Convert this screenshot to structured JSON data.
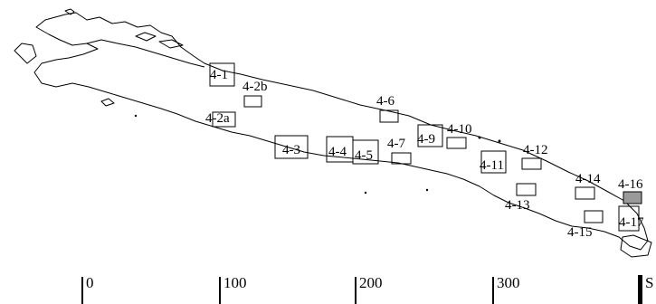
{
  "map": {
    "sheets": [
      {
        "id": "4-1",
        "label": "4-1",
        "shaded": false
      },
      {
        "id": "4-2a",
        "label": "4-2a",
        "shaded": false
      },
      {
        "id": "4-2b",
        "label": "4-2b",
        "shaded": false
      },
      {
        "id": "4-3",
        "label": "4-3",
        "shaded": false
      },
      {
        "id": "4-4",
        "label": "4-4",
        "shaded": false
      },
      {
        "id": "4-5",
        "label": "4-5",
        "shaded": false
      },
      {
        "id": "4-6",
        "label": "4-6",
        "shaded": false
      },
      {
        "id": "4-7",
        "label": "4-7",
        "shaded": false
      },
      {
        "id": "4-9",
        "label": "4-9",
        "shaded": false
      },
      {
        "id": "4-10",
        "label": "4-10",
        "shaded": false
      },
      {
        "id": "4-11",
        "label": "4-11",
        "shaded": false
      },
      {
        "id": "4-12",
        "label": "4-12",
        "shaded": false
      },
      {
        "id": "4-13",
        "label": "4-13",
        "shaded": false
      },
      {
        "id": "4-14",
        "label": "4-14",
        "shaded": false
      },
      {
        "id": "4-15",
        "label": "4-15",
        "shaded": false
      },
      {
        "id": "4-16",
        "label": "4-16",
        "shaded": true
      },
      {
        "id": "4-17",
        "label": "4-17",
        "shaded": false
      }
    ],
    "shade_color": "#9a9a9a",
    "scale_bar": {
      "labels": [
        "0",
        "100",
        "200",
        "300",
        "S"
      ]
    }
  }
}
